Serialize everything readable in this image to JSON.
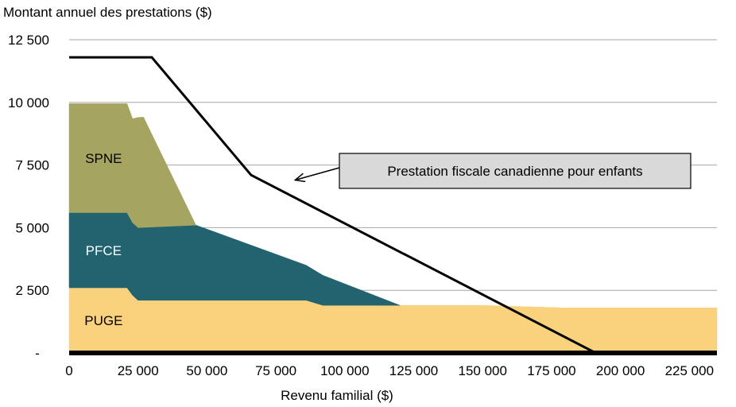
{
  "chart_data": {
    "type": "area",
    "title": "",
    "ylabel": "Montant annuel des prestations ($)",
    "xlabel": "Revenu familial ($)",
    "xlim": [
      0,
      235000
    ],
    "ylim": [
      0,
      12500
    ],
    "grid": "horizontal",
    "y_ticks": [
      {
        "value": 0,
        "label": "-"
      },
      {
        "value": 2500,
        "label": "2 500"
      },
      {
        "value": 5000,
        "label": "5 000"
      },
      {
        "value": 7500,
        "label": "7 500"
      },
      {
        "value": 10000,
        "label": "10 000"
      },
      {
        "value": 12500,
        "label": "12 500"
      }
    ],
    "x_ticks": [
      {
        "value": 0,
        "label": "0"
      },
      {
        "value": 25000,
        "label": "25 000"
      },
      {
        "value": 50000,
        "label": "50 000"
      },
      {
        "value": 75000,
        "label": "75 000"
      },
      {
        "value": 100000,
        "label": "100 000"
      },
      {
        "value": 125000,
        "label": "125 000"
      },
      {
        "value": 150000,
        "label": "150 000"
      },
      {
        "value": 175000,
        "label": "175 000"
      },
      {
        "value": 200000,
        "label": "200 000"
      },
      {
        "value": 225000,
        "label": "225 000"
      }
    ],
    "stacked_series": [
      {
        "name": "PUGE",
        "color": "#FAD27E",
        "x": [
          0,
          21000,
          23000,
          25000,
          86000,
          92000,
          120000,
          150000,
          180000,
          235000
        ],
        "values": [
          2600,
          2600,
          2300,
          2100,
          2100,
          1900,
          1900,
          1900,
          1800,
          1800
        ]
      },
      {
        "name": "PFCE",
        "color": "#236370",
        "x": [
          0,
          21000,
          23000,
          25000,
          46000,
          86000,
          92000,
          120000
        ],
        "values": [
          3000,
          3000,
          2900,
          2900,
          3000,
          1400,
          1200,
          0
        ]
      },
      {
        "name": "SPNE",
        "color": "#A5A561",
        "x": [
          0,
          21000,
          23000,
          25000,
          27000,
          46000
        ],
        "values": [
          4350,
          4350,
          4150,
          4400,
          4400,
          0
        ]
      }
    ],
    "line_series": [
      {
        "name": "Prestation fiscale canadienne pour enfants",
        "color": "#000000",
        "x": [
          0,
          30000,
          66000,
          191000,
          235000
        ],
        "values": [
          11800,
          11800,
          7100,
          0,
          0
        ]
      }
    ],
    "annotation": {
      "text": "Prestation fiscale canadienne pour enfants",
      "arrow_target": {
        "x": 82000,
        "y": 6900
      }
    }
  }
}
